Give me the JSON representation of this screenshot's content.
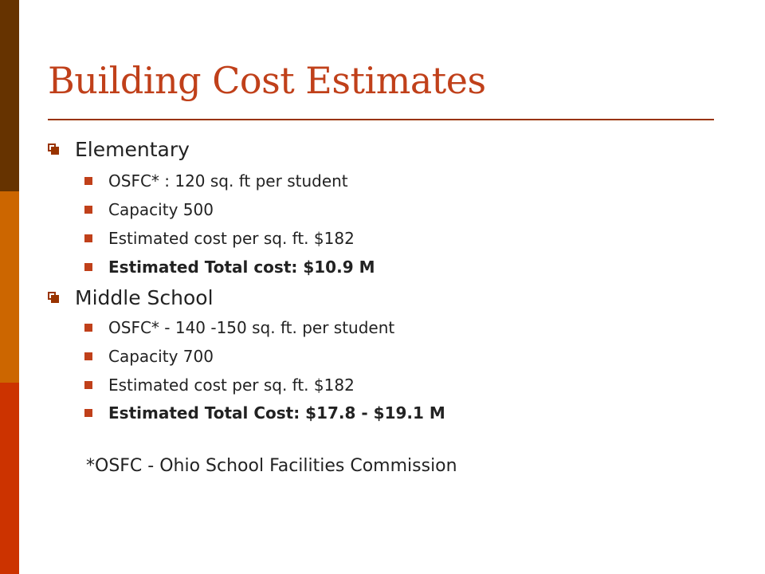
{
  "slide": {
    "title": "Building Cost Estimates",
    "sections": [
      {
        "heading": "Elementary",
        "items": [
          "OSFC* : 120 sq. ft per student",
          "Capacity 500",
          "Estimated cost per sq. ft. $182",
          "Estimated Total cost: $10.9 M"
        ]
      },
      {
        "heading": "Middle School",
        "items": [
          "OSFC* - 140 -150 sq. ft. per student",
          "Capacity 700",
          "Estimated cost per sq. ft. $182",
          "Estimated Total Cost: $17.8 - $19.1 M"
        ]
      }
    ],
    "footnote": "*OSFC - Ohio School Facilities Commission"
  },
  "colors": {
    "title": "#C0401A",
    "rule": "#993300",
    "bar_top": "#663300",
    "bar_middle": "#CC6600",
    "bar_bottom": "#CC3300"
  }
}
